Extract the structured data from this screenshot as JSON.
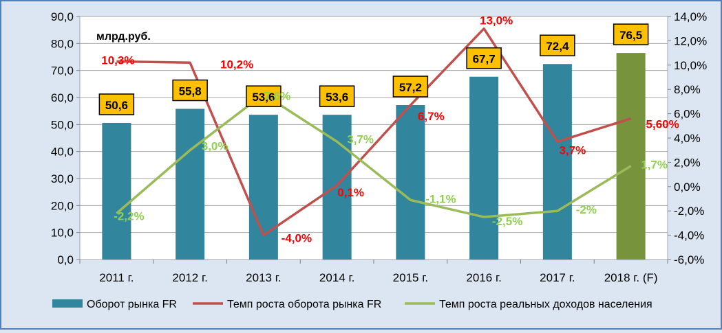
{
  "chart_data": {
    "type": "bar",
    "unit_label": "млрд.руб.",
    "categories": [
      "2011 г.",
      "2012 г.",
      "2013 г.",
      "2014 г.",
      "2015 г.",
      "2016 г.",
      "2017 г.",
      "2018 г. (F)"
    ],
    "left_axis": {
      "ylim": [
        0,
        90
      ],
      "ticks": [
        "0,0",
        "10,0",
        "20,0",
        "30,0",
        "40,0",
        "50,0",
        "60,0",
        "70,0",
        "80,0",
        "90,0"
      ]
    },
    "right_axis": {
      "ylim": [
        -6,
        14
      ],
      "ticks": [
        "-6,0%",
        "-4,0%",
        "-2,0%",
        "0,0%",
        "2,0%",
        "4,0%",
        "6,0%",
        "8,0%",
        "10,0%",
        "12,0%",
        "14,0%"
      ]
    },
    "grid": true,
    "legend_position": "bottom",
    "series": [
      {
        "name": "Оборот рынка FR",
        "kind": "bar",
        "axis": "left",
        "color": "#31859c",
        "forecast_color": "#77933c",
        "values": [
          50.6,
          55.8,
          53.6,
          53.6,
          57.2,
          67.7,
          72.4,
          76.5
        ],
        "labels": [
          "50,6",
          "55,8",
          "53,6",
          "53,6",
          "57,2",
          "67,7",
          "72,4",
          "76,5"
        ]
      },
      {
        "name": "Темп роста оборота рынка FR",
        "kind": "line",
        "axis": "right",
        "color": "#c0504d",
        "label_color": "#ff0000",
        "values": [
          10.3,
          10.2,
          -4.0,
          0.1,
          6.7,
          13.0,
          3.7,
          5.6
        ],
        "labels": [
          "10,3%",
          "10,2%",
          "-4,0%",
          "0,1%",
          "6,7%",
          "13,0%",
          "3,7%",
          "5,60%"
        ]
      },
      {
        "name": "Темп роста реальных доходов населения",
        "kind": "line",
        "axis": "right",
        "color": "#9bbb59",
        "label_color": "#92d050",
        "values": [
          -2.2,
          3.0,
          7.6,
          3.7,
          -1.1,
          -2.5,
          -2.0,
          1.7
        ],
        "labels": [
          "-2,2%",
          "3,0%",
          "7,6%",
          "3,7%",
          "-1,1%",
          "-2,5%",
          "-2%",
          "1,7%"
        ]
      }
    ]
  }
}
